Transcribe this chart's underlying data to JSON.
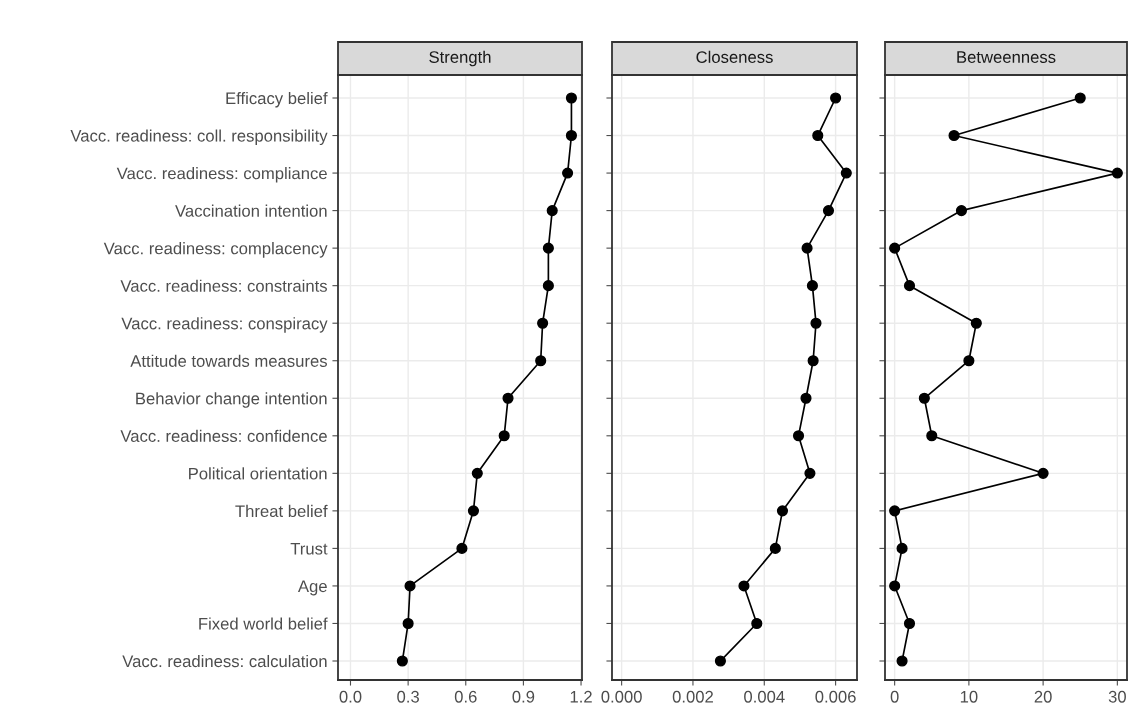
{
  "chart_data": [
    {
      "type": "line",
      "title": "Strength",
      "orientation": "horizontal",
      "categories": [
        "Efficacy belief",
        "Vacc. readiness: coll. responsibility",
        "Vacc. readiness: compliance",
        "Vaccination intention",
        "Vacc. readiness: complacency",
        "Vacc. readiness: constraints",
        "Vacc. readiness: conspiracy",
        "Attitude towards measures",
        "Behavior change intention",
        "Vacc. readiness: confidence",
        "Political orientation",
        "Threat belief",
        "Trust",
        "Age",
        "Fixed world belief",
        "Vacc. readiness: calculation"
      ],
      "series": [
        {
          "color": "#000000",
          "values": [
            1.15,
            1.15,
            1.13,
            1.05,
            1.03,
            1.03,
            1.0,
            0.99,
            0.82,
            0.8,
            0.66,
            0.64,
            0.58,
            0.31,
            0.3,
            0.27
          ]
        }
      ],
      "xlim": [
        -0.065,
        1.205
      ],
      "xticks": [
        {
          "value": 0,
          "label": "0.0"
        },
        0.3,
        0.6,
        0.9,
        {
          "value": 1.2,
          "label": "1.2"
        }
      ],
      "grid": true,
      "marker": "circle",
      "line_style": "solid"
    },
    {
      "type": "line",
      "title": "Closeness",
      "orientation": "horizontal",
      "series": [
        {
          "color": "#000000",
          "values": [
            0.006,
            0.0055,
            0.0063,
            0.0058,
            0.0052,
            0.00535,
            0.00545,
            0.00537,
            0.00517,
            0.00496,
            0.00528,
            0.00451,
            0.00431,
            0.00343,
            0.00379,
            0.00277
          ]
        }
      ],
      "xlim": [
        -0.00027,
        0.0066
      ],
      "xticks": [
        {
          "value": 0,
          "label": "0.000"
        },
        {
          "value": 0.002,
          "label": "0.002"
        },
        {
          "value": 0.004,
          "label": "0.004"
        },
        {
          "value": 0.006,
          "label": "0.006"
        }
      ],
      "tick_labels": "x",
      "grid": true,
      "marker": "circle",
      "line_style": "solid"
    },
    {
      "type": "line",
      "title": "Betweenness",
      "orientation": "horizontal",
      "series": [
        {
          "color": "#000000",
          "values": [
            25,
            8,
            30,
            9,
            0,
            2,
            11,
            10,
            4,
            5,
            20,
            0,
            1,
            0,
            2,
            1
          ]
        }
      ],
      "xlim": [
        -1.3,
        31.3
      ],
      "xticks": [
        0,
        10,
        20,
        30
      ],
      "tick_labels": "x",
      "grid": true,
      "marker": "circle",
      "line_style": "solid"
    }
  ]
}
